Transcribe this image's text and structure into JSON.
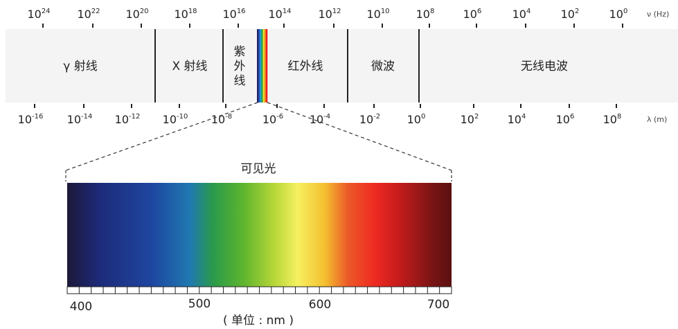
{
  "frequency_axis": {
    "unit": "ν (Hz)",
    "ticks": [
      {
        "base": "10",
        "exp": "24"
      },
      {
        "base": "10",
        "exp": "22"
      },
      {
        "base": "10",
        "exp": "20"
      },
      {
        "base": "10",
        "exp": "18"
      },
      {
        "base": "10",
        "exp": "16"
      },
      {
        "base": "10",
        "exp": "14"
      },
      {
        "base": "10",
        "exp": "12"
      },
      {
        "base": "10",
        "exp": "10"
      },
      {
        "base": "10",
        "exp": "8"
      },
      {
        "base": "10",
        "exp": "6"
      },
      {
        "base": "10",
        "exp": "4"
      },
      {
        "base": "10",
        "exp": "2"
      },
      {
        "base": "10",
        "exp": "0"
      }
    ]
  },
  "wavelength_axis": {
    "unit": "λ (m)",
    "ticks": [
      {
        "base": "10",
        "exp": "-16"
      },
      {
        "base": "10",
        "exp": "-14"
      },
      {
        "base": "10",
        "exp": "-12"
      },
      {
        "base": "10",
        "exp": "-10"
      },
      {
        "base": "10",
        "exp": "-8"
      },
      {
        "base": "10",
        "exp": "-6"
      },
      {
        "base": "10",
        "exp": "-4"
      },
      {
        "base": "10",
        "exp": "-2"
      },
      {
        "base": "10",
        "exp": "0"
      },
      {
        "base": "10",
        "exp": "2"
      },
      {
        "base": "10",
        "exp": "4"
      },
      {
        "base": "10",
        "exp": "6"
      },
      {
        "base": "10",
        "exp": "8"
      }
    ]
  },
  "bands": [
    {
      "id": "gamma",
      "label": "γ 射线"
    },
    {
      "id": "xray",
      "label": "X 射线"
    },
    {
      "id": "uv",
      "label": "紫\n外\n线"
    },
    {
      "id": "ir",
      "label": "红外线"
    },
    {
      "id": "microwave",
      "label": "微波"
    },
    {
      "id": "radio",
      "label": "无线电波"
    }
  ],
  "visible": {
    "title": "可见光",
    "scale_labels": [
      "400",
      "500",
      "600",
      "700"
    ],
    "unit_label": "( 单位 : nm )"
  },
  "colors": {
    "spectrum": [
      "#1c1838",
      "#1d2a78",
      "#1e46a0",
      "#1f79b0",
      "#2a9a4a",
      "#5fb52e",
      "#b8d838",
      "#f6f060",
      "#f4c030",
      "#ec5a28",
      "#ee2a22",
      "#c81c1c",
      "#7a1414",
      "#5a1010"
    ],
    "bar_fill": "#f4f4f4",
    "divider": "#222222"
  }
}
